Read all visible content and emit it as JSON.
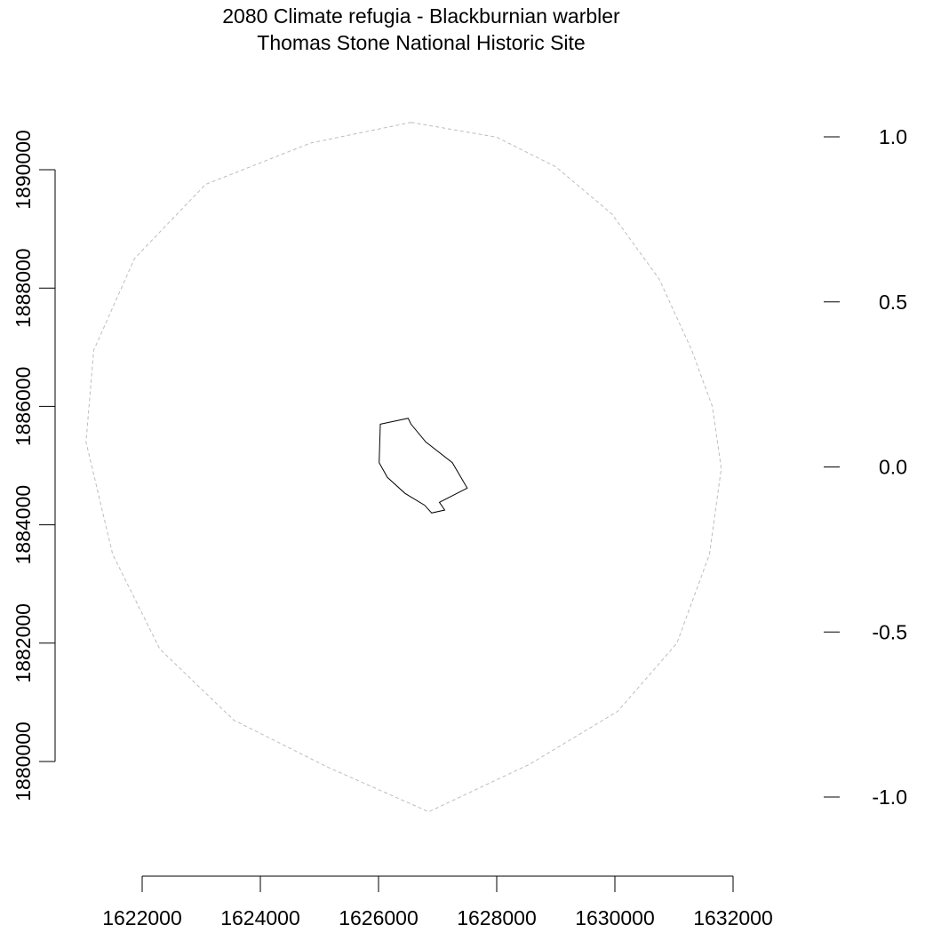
{
  "chart_data": {
    "type": "map",
    "title": "2080 Climate refugia - Blackburnian warbler",
    "subtitle": "Thomas Stone National Historic Site",
    "x_axis": {
      "ticks": [
        1622000,
        1624000,
        1626000,
        1628000,
        1630000,
        1632000
      ],
      "tick_labels": [
        "1622000",
        "1624000",
        "1626000",
        "1628000",
        "1630000",
        "1632000"
      ],
      "range": [
        1622000,
        1632000
      ]
    },
    "y_axis_left": {
      "ticks": [
        1880000,
        1882000,
        1884000,
        1886000,
        1888000,
        1890000
      ],
      "tick_labels": [
        "1880000",
        "1882000",
        "1884000",
        "1886000",
        "1888000",
        "1890000"
      ],
      "range": [
        1880000,
        1890000
      ]
    },
    "y_axis_right": {
      "ticks": [
        1.0,
        0.5,
        0.0,
        -0.5,
        -1.0
      ],
      "tick_labels": [
        "1.0",
        "0.5",
        "0.0",
        "-0.5",
        "-1.0"
      ],
      "range": [
        -1.0,
        1.0
      ]
    },
    "layers": [
      {
        "name": "buffer",
        "style": "dashed",
        "color": "#bdbdbd",
        "points": [
          [
            1626550,
            1890800
          ],
          [
            1628000,
            1890550
          ],
          [
            1629000,
            1890050
          ],
          [
            1629950,
            1889250
          ],
          [
            1630750,
            1888150
          ],
          [
            1631300,
            1886950
          ],
          [
            1631650,
            1886000
          ],
          [
            1631800,
            1884950
          ],
          [
            1631600,
            1883500
          ],
          [
            1631050,
            1882000
          ],
          [
            1630050,
            1880850
          ],
          [
            1628550,
            1879950
          ],
          [
            1626850,
            1879150
          ],
          [
            1625150,
            1879900
          ],
          [
            1623550,
            1880700
          ],
          [
            1622300,
            1881900
          ],
          [
            1621500,
            1883500
          ],
          [
            1621050,
            1885400
          ],
          [
            1621180,
            1886950
          ],
          [
            1621870,
            1888500
          ],
          [
            1623070,
            1889750
          ],
          [
            1624850,
            1890450
          ],
          [
            1626550,
            1890800
          ]
        ]
      },
      {
        "name": "park boundary",
        "style": "solid",
        "color": "#000000",
        "points": [
          [
            1626030,
            1885700
          ],
          [
            1626500,
            1885800
          ],
          [
            1626550,
            1885700
          ],
          [
            1626800,
            1885400
          ],
          [
            1627250,
            1885050
          ],
          [
            1627500,
            1884620
          ],
          [
            1627030,
            1884380
          ],
          [
            1627120,
            1884250
          ],
          [
            1626900,
            1884200
          ],
          [
            1626780,
            1884330
          ],
          [
            1626450,
            1884530
          ],
          [
            1626150,
            1884800
          ],
          [
            1626010,
            1885050
          ],
          [
            1626030,
            1885700
          ]
        ]
      }
    ]
  }
}
